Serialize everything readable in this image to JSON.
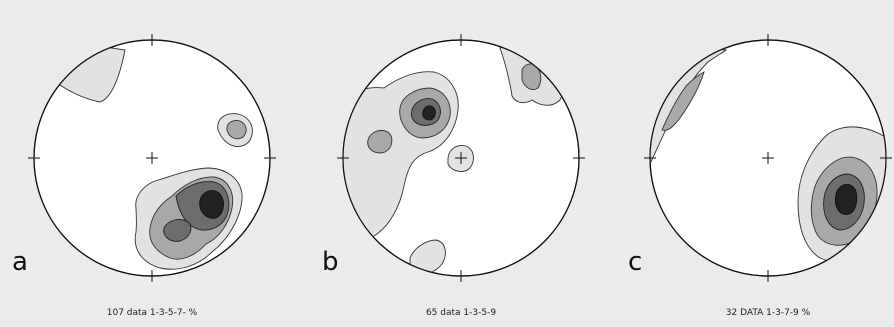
{
  "panels": [
    {
      "letter": "a",
      "caption": "107 data 1-3-5-7- %"
    },
    {
      "letter": "b",
      "caption": "65 data 1-3-5-9"
    },
    {
      "letter": "c",
      "caption": "32 DATA 1-3-7-9 %"
    }
  ],
  "colors": {
    "background": "#ebebeb",
    "level1": "#e2e2e2",
    "level2": "#a8a8a8",
    "level3": "#6d6d6d",
    "level4": "#222222"
  }
}
